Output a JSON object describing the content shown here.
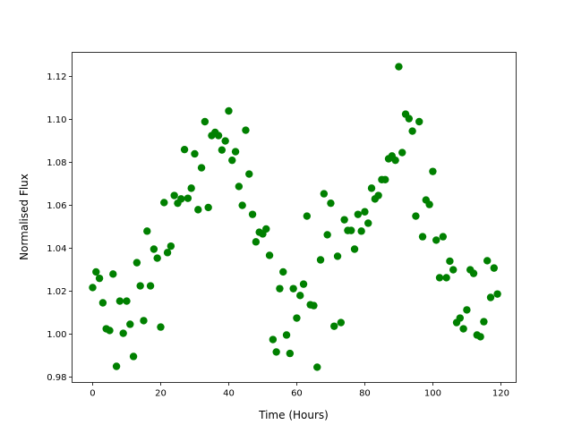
{
  "chart_data": {
    "type": "scatter",
    "title": "",
    "xlabel": "Time (Hours)",
    "ylabel": "Normalised Flux",
    "xlim": [
      -6.05,
      124.5
    ],
    "ylim": [
      0.9775,
      1.1313
    ],
    "xticks": [
      0,
      20,
      40,
      60,
      80,
      100,
      120
    ],
    "xtick_labels": [
      "0",
      "20",
      "40",
      "60",
      "80",
      "100",
      "120"
    ],
    "yticks": [
      0.98,
      1.0,
      1.02,
      1.04,
      1.06,
      1.08,
      1.1,
      1.12
    ],
    "ytick_labels": [
      "0.98",
      "1.00",
      "1.02",
      "1.04",
      "1.06",
      "1.08",
      "1.10",
      "1.12"
    ],
    "grid": false,
    "marker_color": "#008000",
    "series": [
      {
        "x": [
          0,
          1,
          2,
          3,
          4,
          5,
          6,
          7,
          8,
          9,
          10,
          11,
          12,
          13,
          14,
          15,
          16,
          17,
          18,
          19,
          20,
          21,
          22,
          23,
          24,
          25,
          26,
          27,
          28,
          29,
          30,
          31,
          32,
          33,
          34,
          35,
          36,
          37,
          38,
          39,
          40,
          41,
          42,
          43,
          44,
          45,
          46,
          47,
          48,
          49,
          50,
          51,
          52,
          53,
          54,
          55,
          56,
          57,
          58,
          59,
          60,
          61,
          62,
          63,
          64,
          65,
          66,
          67,
          68,
          69,
          70,
          71,
          72,
          73,
          74,
          75,
          76,
          77,
          78,
          79,
          80,
          81,
          82,
          83,
          84,
          85,
          86,
          87,
          88,
          89,
          90,
          91,
          92,
          93,
          94,
          95,
          96,
          97,
          98,
          99,
          100,
          101,
          102,
          103,
          104,
          105,
          106,
          107,
          108,
          109,
          110,
          111,
          112,
          113,
          114,
          115,
          116,
          117,
          118,
          119
        ],
        "y": [
          1.0217,
          1.029,
          1.026,
          1.0146,
          1.0025,
          1.0017,
          1.028,
          0.985,
          1.0154,
          1.0004,
          1.0154,
          1.0046,
          0.9896,
          1.0333,
          1.0225,
          1.0063,
          1.048,
          1.0225,
          1.0396,
          1.0354,
          1.0033,
          1.0613,
          1.038,
          1.041,
          1.0646,
          1.061,
          1.063,
          1.086,
          1.0633,
          1.068,
          1.084,
          1.058,
          1.0775,
          1.099,
          1.059,
          1.0925,
          1.094,
          1.0925,
          1.0858,
          1.09,
          1.104,
          1.081,
          1.085,
          1.0688,
          1.06,
          1.095,
          1.0746,
          1.0558,
          1.043,
          1.0475,
          1.0467,
          1.049,
          1.0367,
          0.9975,
          0.9917,
          1.0212,
          1.029,
          0.9996,
          0.991,
          1.0212,
          1.0075,
          1.018,
          1.0233,
          1.055,
          1.0137,
          1.0133,
          0.9846,
          1.0346,
          1.0654,
          1.0463,
          1.061,
          1.0037,
          1.0363,
          1.0054,
          1.0533,
          1.0483,
          1.0483,
          1.0396,
          1.0558,
          1.048,
          1.057,
          1.0517,
          1.068,
          1.063,
          1.0646,
          1.072,
          1.072,
          1.0817,
          1.083,
          1.081,
          1.1246,
          1.0846,
          1.1025,
          1.1004,
          1.0946,
          1.055,
          1.099,
          1.0454,
          1.0625,
          1.0604,
          1.0758,
          1.0438,
          1.0263,
          1.0454,
          1.0263,
          1.034,
          1.03,
          1.0054,
          1.0075,
          1.0025,
          1.0113,
          1.03,
          1.0283,
          0.9996,
          0.9988,
          1.0058,
          1.0342,
          1.0171,
          1.0308,
          1.0187
        ]
      }
    ]
  }
}
